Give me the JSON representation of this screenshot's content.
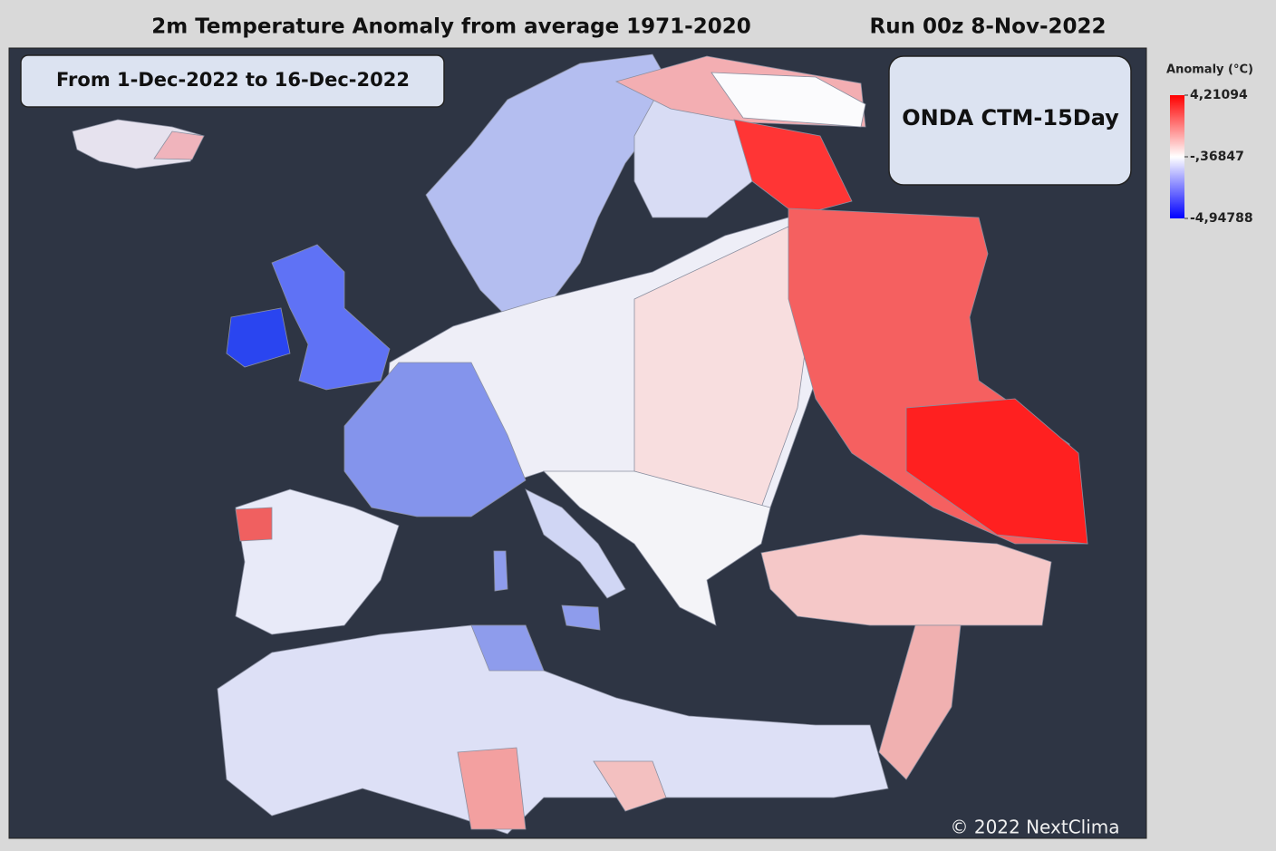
{
  "header": {
    "title": "2m Temperature Anomaly from average 1971-2020",
    "run": "Run 00z 8-Nov-2022"
  },
  "map": {
    "period": "From 1-Dec-2022 to 16-Dec-2022",
    "model": "ONDA CTM-15Day",
    "copyright": "© 2022 NextClima"
  },
  "legend": {
    "title": "Anomaly (°C)",
    "ticks": [
      {
        "value": 4.21094,
        "label": "4,21094"
      },
      {
        "value": -0.36847,
        "label": "-,36847"
      },
      {
        "value": -4.94788,
        "label": "-4,94788"
      }
    ],
    "colors": [
      "#ff0000",
      "#ffffff",
      "#0000ff"
    ]
  }
}
